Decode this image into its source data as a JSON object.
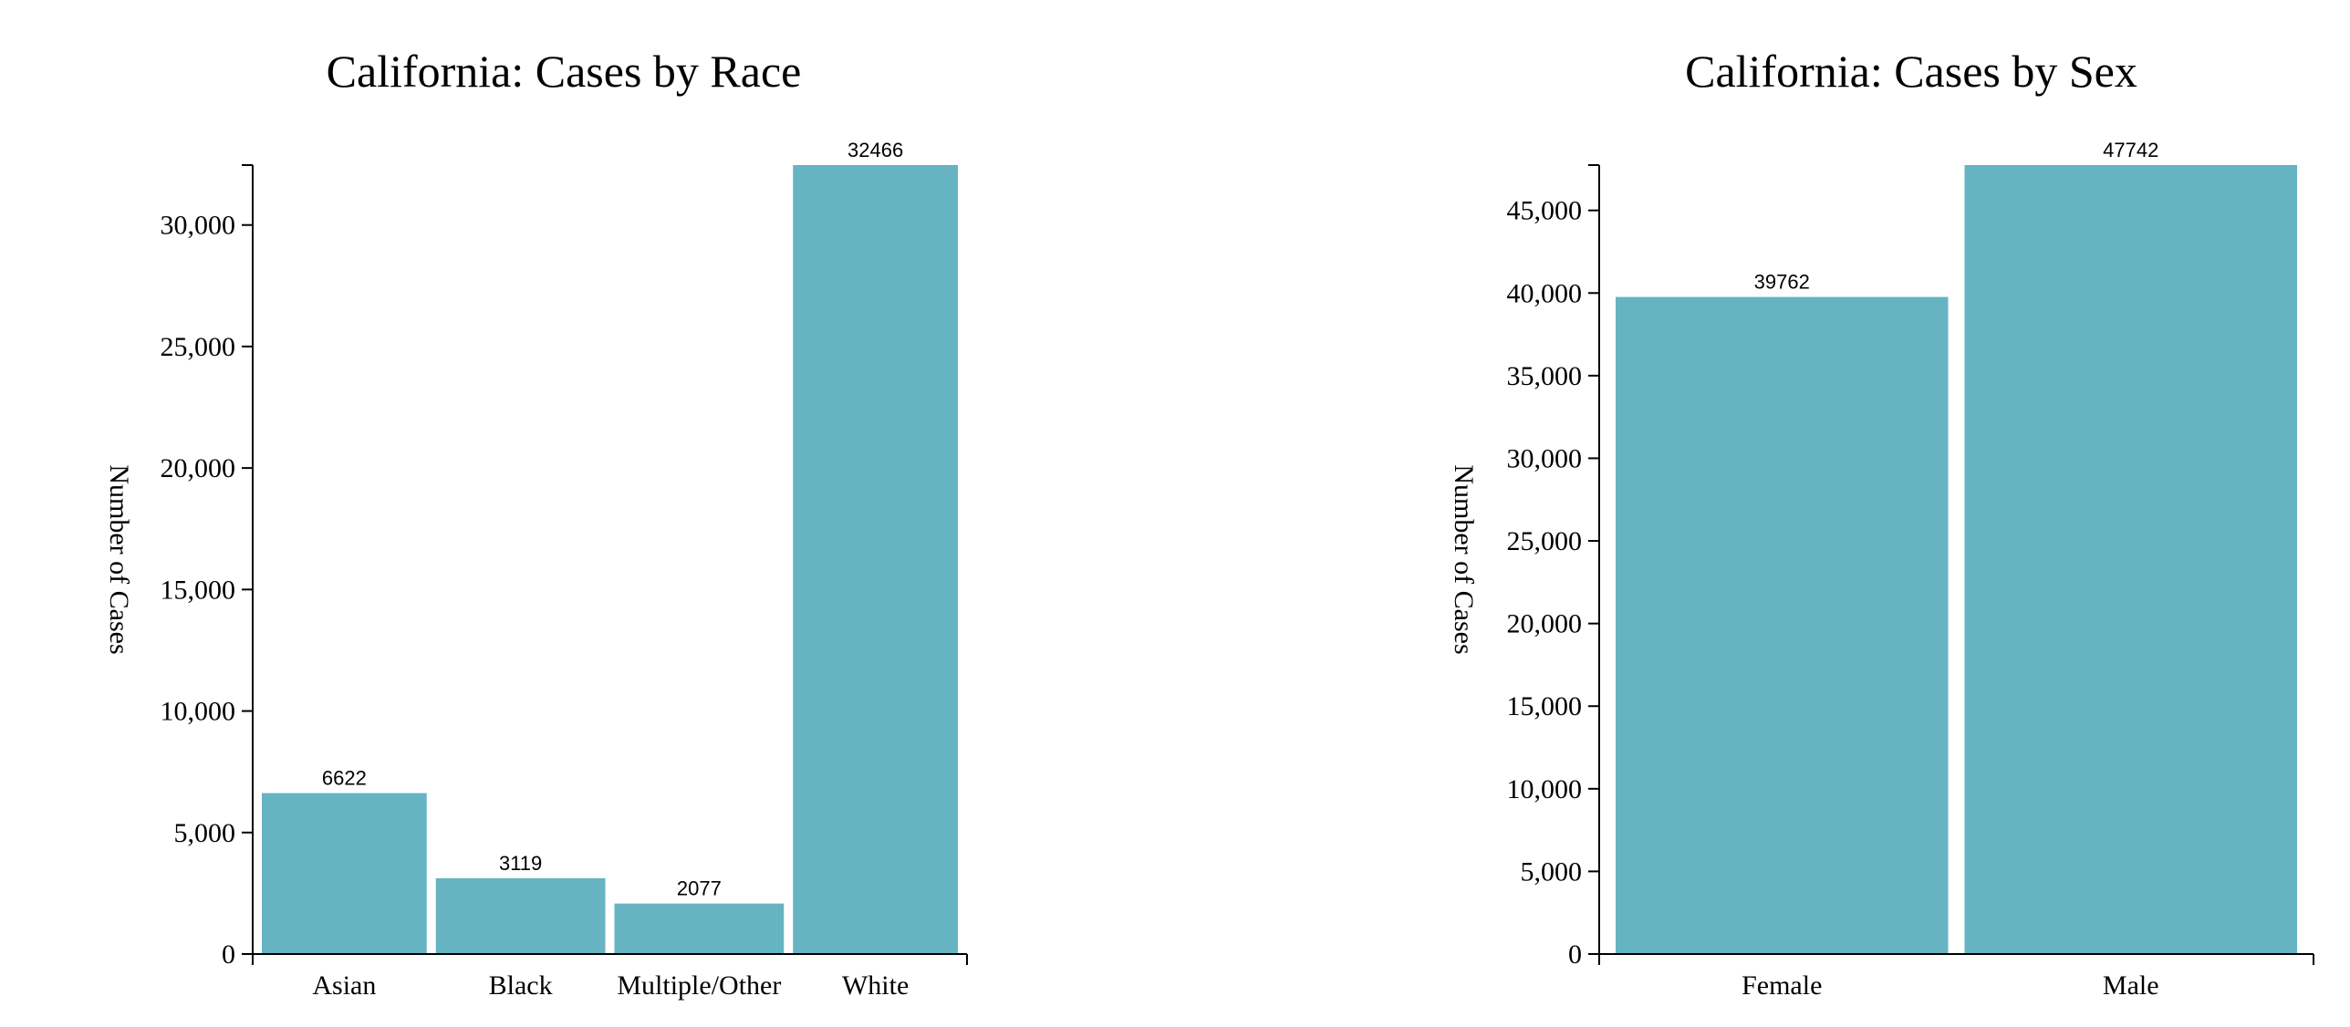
{
  "chart_data": [
    {
      "type": "bar",
      "title": "California: Cases by Race",
      "xlabel": "",
      "ylabel": "Number of Cases",
      "categories": [
        "Asian",
        "Black",
        "Multiple/Other",
        "White"
      ],
      "values": [
        6622,
        3119,
        2077,
        32466
      ],
      "data_labels": [
        "6622",
        "3119",
        "2077",
        "32466"
      ],
      "ylim": [
        0,
        32466
      ],
      "yticks": [
        0,
        5000,
        10000,
        15000,
        20000,
        25000,
        30000
      ],
      "ytick_labels": [
        "0",
        "5,000",
        "10,000",
        "15,000",
        "20,000",
        "25,000",
        "30,000"
      ],
      "bar_color": "#66b3c2",
      "grid": false,
      "legend": "none"
    },
    {
      "type": "bar",
      "title": "California: Cases by Sex",
      "xlabel": "",
      "ylabel": "Number of Cases",
      "categories": [
        "Female",
        "Male"
      ],
      "values": [
        39762,
        47742
      ],
      "data_labels": [
        "39762",
        "47742"
      ],
      "ylim": [
        0,
        47742
      ],
      "yticks": [
        0,
        5000,
        10000,
        15000,
        20000,
        25000,
        30000,
        35000,
        40000,
        45000
      ],
      "ytick_labels": [
        "0",
        "5,000",
        "10,000",
        "15,000",
        "20,000",
        "25,000",
        "30,000",
        "35,000",
        "40,000",
        "45,000"
      ],
      "bar_color": "#66b3c2",
      "grid": false,
      "legend": "none"
    }
  ]
}
